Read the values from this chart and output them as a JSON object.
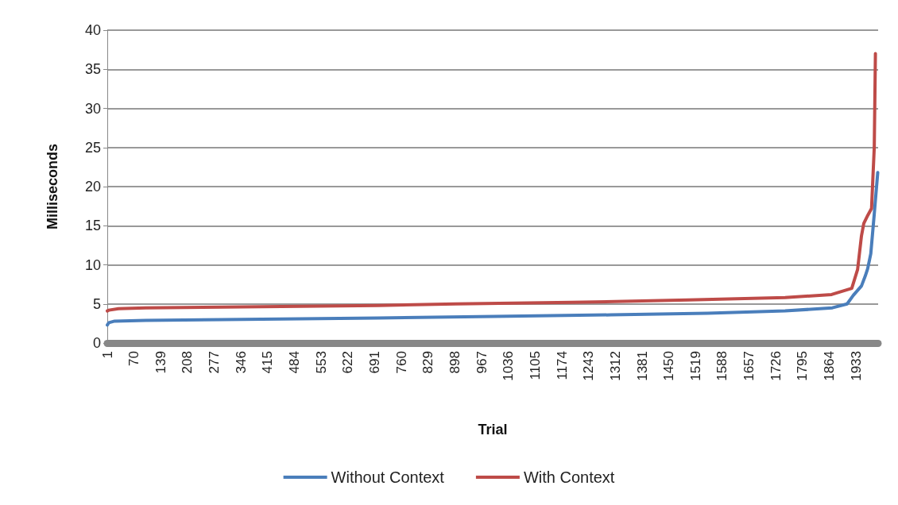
{
  "chart_data": {
    "type": "line",
    "xlabel": "Trial",
    "ylabel": "Milliseconds",
    "xlim": [
      1,
      1990
    ],
    "xticks": [
      1,
      70,
      139,
      208,
      277,
      346,
      415,
      484,
      553,
      622,
      691,
      760,
      829,
      898,
      967,
      1036,
      1105,
      1174,
      1243,
      1312,
      1381,
      1450,
      1519,
      1588,
      1657,
      1726,
      1795,
      1864,
      1933
    ],
    "ylim": [
      0,
      40
    ],
    "yticks": [
      0,
      5,
      10,
      15,
      20,
      25,
      30,
      35,
      40
    ],
    "grid": "y",
    "legend": "bottom",
    "marker": "none",
    "line_style": "solid",
    "series": [
      {
        "name": "Without Context",
        "color": "#4a7ebb",
        "x": [
          1,
          5,
          20,
          100,
          300,
          500,
          700,
          1000,
          1300,
          1550,
          1750,
          1872,
          1910,
          1926,
          1947,
          1957,
          1963,
          1971,
          1980,
          1989
        ],
        "values": [
          2.3,
          2.6,
          2.8,
          2.9,
          3.0,
          3.1,
          3.2,
          3.4,
          3.6,
          3.8,
          4.1,
          4.5,
          5.0,
          6.1,
          7.3,
          8.6,
          9.5,
          11.4,
          16.5,
          21.8
        ]
      },
      {
        "name": "With Context",
        "color": "#be4b48",
        "x": [
          1,
          5,
          30,
          100,
          300,
          500,
          700,
          900,
          1200,
          1500,
          1750,
          1870,
          1922,
          1937,
          1947,
          1953,
          1963,
          1973,
          1980,
          1983
        ],
        "values": [
          4.1,
          4.2,
          4.4,
          4.5,
          4.6,
          4.7,
          4.8,
          5.0,
          5.2,
          5.5,
          5.8,
          6.2,
          7.0,
          9.4,
          13.7,
          15.3,
          16.3,
          17.2,
          25,
          37
        ]
      }
    ]
  }
}
